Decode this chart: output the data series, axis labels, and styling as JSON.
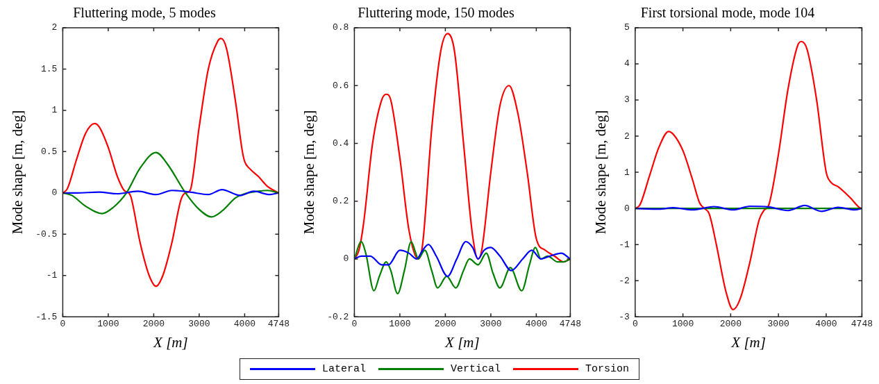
{
  "chart_data": [
    {
      "type": "line",
      "title": "Fluttering mode, 5 modes",
      "xlabel": "X [m]",
      "ylabel": "Mode shape [m, deg]",
      "xlim": [
        0,
        4748
      ],
      "xticks": [
        0,
        1000,
        2000,
        3000,
        4000,
        4748
      ],
      "ylim": [
        -1.5,
        2
      ],
      "yticks": [
        -1.5,
        -1,
        -0.5,
        0,
        0.5,
        1,
        1.5,
        2
      ],
      "grid": false,
      "legend": "bottom",
      "marker": "none",
      "line_style": "solid",
      "series": [
        {
          "name": "Lateral",
          "color": "#0000ff",
          "x": [
            0,
            300,
            800,
            1200,
            1650,
            2050,
            2400,
            2800,
            3200,
            3500,
            3900,
            4200,
            4550,
            4748
          ],
          "values": [
            0,
            0,
            0.01,
            -0.01,
            0.02,
            -0.02,
            0.03,
            0.01,
            -0.02,
            0.04,
            -0.03,
            0.02,
            -0.02,
            0
          ]
        },
        {
          "name": "Vertical",
          "color": "#008000",
          "x": [
            0,
            200,
            500,
            870,
            1100,
            1400,
            1700,
            2050,
            2300,
            2700,
            3000,
            3270,
            3500,
            3800,
            4000,
            4300,
            4500,
            4748
          ],
          "values": [
            0,
            -0.03,
            -0.16,
            -0.25,
            -0.18,
            0,
            0.3,
            0.49,
            0.35,
            0,
            -0.2,
            -0.29,
            -0.22,
            -0.06,
            -0.01,
            0.02,
            0.03,
            0
          ]
        },
        {
          "name": "Torsion",
          "color": "#ff0000",
          "x": [
            0,
            100,
            300,
            500,
            700,
            800,
            1000,
            1200,
            1350,
            1450,
            1500,
            1700,
            1900,
            2050,
            2200,
            2400,
            2600,
            2700,
            2800,
            3000,
            3200,
            3400,
            3480,
            3600,
            3800,
            3950,
            4000,
            4100,
            4300,
            4500,
            4748
          ],
          "values": [
            0,
            0.05,
            0.4,
            0.72,
            0.84,
            0.8,
            0.55,
            0.2,
            0.03,
            0,
            -0.05,
            -0.6,
            -1,
            -1.13,
            -1,
            -0.6,
            -0.08,
            0,
            0.03,
            0.8,
            1.5,
            1.83,
            1.87,
            1.75,
            1.1,
            0.5,
            0.38,
            0.3,
            0.2,
            0.08,
            0
          ]
        }
      ]
    },
    {
      "type": "line",
      "title": "Fluttering mode, 150 modes",
      "xlabel": "X [m]",
      "ylabel": "Mode shape [m, deg]",
      "xlim": [
        0,
        4748
      ],
      "xticks": [
        0,
        1000,
        2000,
        3000,
        4000,
        4748
      ],
      "ylim": [
        -0.2,
        0.8
      ],
      "yticks": [
        -0.2,
        0,
        0.2,
        0.4,
        0.6,
        0.8
      ],
      "grid": false,
      "marker": "none",
      "line_style": "solid",
      "series": [
        {
          "color": "#0000ff",
          "x": [
            0,
            150,
            350,
            600,
            750,
            1000,
            1200,
            1370,
            1500,
            1630,
            1800,
            2050,
            2250,
            2450,
            2600,
            2720,
            2850,
            3000,
            3200,
            3450,
            3700,
            3900,
            4100,
            4300,
            4550,
            4748
          ],
          "values": [
            0,
            0.01,
            0.01,
            -0.02,
            -0.02,
            0.03,
            0.02,
            0,
            0.03,
            0.05,
            0.01,
            -0.06,
            0,
            0.06,
            0.04,
            0,
            0.03,
            0.04,
            0.01,
            -0.04,
            0,
            0.03,
            0,
            0.01,
            0.02,
            0
          ]
        },
        {
          "color": "#008000",
          "x": [
            0,
            150,
            250,
            430,
            550,
            700,
            800,
            950,
            1100,
            1250,
            1350,
            1400,
            1550,
            1700,
            1830,
            2030,
            2230,
            2400,
            2530,
            2720,
            2900,
            3050,
            3200,
            3430,
            3680,
            3850,
            3980,
            4100,
            4250,
            4470,
            4600,
            4748
          ],
          "values": [
            0,
            0.06,
            0.02,
            -0.11,
            -0.06,
            -0.01,
            -0.04,
            -0.12,
            -0.04,
            0.06,
            0.02,
            0,
            0.03,
            -0.04,
            -0.1,
            -0.06,
            -0.1,
            -0.04,
            0,
            -0.02,
            0.02,
            -0.05,
            -0.1,
            -0.03,
            -0.11,
            -0.02,
            0.04,
            0,
            0.01,
            -0.01,
            -0.01,
            0
          ]
        },
        {
          "color": "#ff0000",
          "x": [
            0,
            100,
            200,
            400,
            600,
            700,
            800,
            1000,
            1200,
            1400,
            1500,
            1700,
            1900,
            2050,
            2200,
            2400,
            2600,
            2720,
            2800,
            3000,
            3200,
            3400,
            3600,
            3800,
            4000,
            4200,
            4400,
            4600,
            4748
          ],
          "values": [
            0,
            0.03,
            0.12,
            0.4,
            0.55,
            0.57,
            0.55,
            0.35,
            0.1,
            0,
            0.05,
            0.45,
            0.72,
            0.78,
            0.72,
            0.4,
            0.08,
            0,
            0.03,
            0.3,
            0.53,
            0.6,
            0.5,
            0.3,
            0.07,
            0.03,
            0.01,
            -0.01,
            0
          ]
        }
      ]
    },
    {
      "type": "line",
      "title": "First torsional mode, mode 104",
      "xlabel": "X [m]",
      "ylabel": "Mode shape [m, deg]",
      "xlim": [
        0,
        4748
      ],
      "xticks": [
        0,
        1000,
        2000,
        3000,
        4000,
        4748
      ],
      "ylim": [
        -3,
        5
      ],
      "yticks": [
        -3,
        -2,
        -1,
        0,
        1,
        2,
        3,
        4,
        5
      ],
      "grid": false,
      "marker": "none",
      "line_style": "solid",
      "series": [
        {
          "color": "#0000ff",
          "x": [
            0,
            500,
            800,
            1200,
            1650,
            2050,
            2400,
            2800,
            3200,
            3550,
            3900,
            4250,
            4600,
            4748
          ],
          "values": [
            0,
            -0.02,
            0.02,
            -0.04,
            0.05,
            -0.04,
            0.06,
            0.04,
            -0.06,
            0.08,
            -0.08,
            0.03,
            -0.04,
            0
          ]
        },
        {
          "color": "#008000",
          "x": [
            0,
            1000,
            2000,
            3000,
            4000,
            4748
          ],
          "values": [
            0,
            0,
            0,
            0,
            0,
            0
          ]
        },
        {
          "color": "#ff0000",
          "x": [
            0,
            100,
            300,
            500,
            700,
            800,
            1000,
            1200,
            1350,
            1450,
            1550,
            1700,
            1900,
            2050,
            2200,
            2400,
            2600,
            2700,
            2800,
            3000,
            3200,
            3400,
            3480,
            3600,
            3800,
            4000,
            4100,
            4250,
            4500,
            4700,
            4748
          ],
          "values": [
            0,
            0.1,
            0.9,
            1.7,
            2.13,
            2.05,
            1.6,
            0.8,
            0.15,
            0,
            -0.15,
            -1,
            -2.3,
            -2.8,
            -2.5,
            -1.5,
            -0.3,
            -0.05,
            0.1,
            1.5,
            3.3,
            4.5,
            4.62,
            4.4,
            3,
            1,
            0.72,
            0.6,
            0.3,
            0.02,
            0
          ]
        }
      ]
    }
  ]
}
